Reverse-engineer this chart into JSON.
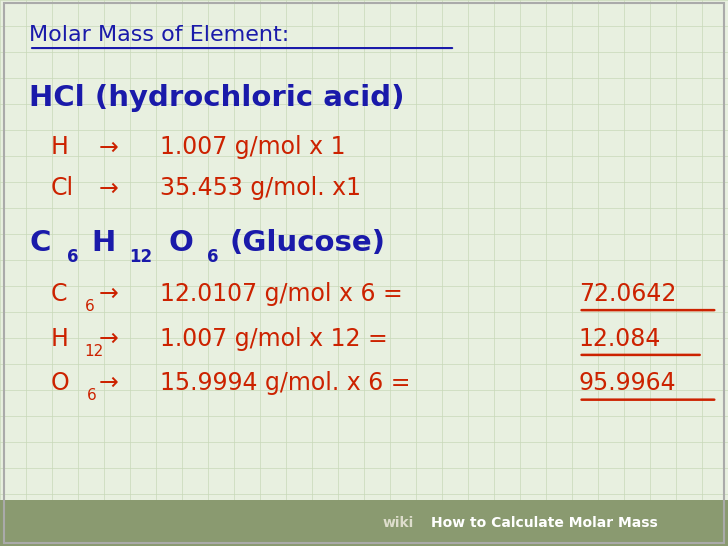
{
  "bg_color": "#e8f0e0",
  "grid_color": "#c8d8b8",
  "title": "Molar Mass of Element:",
  "title_color": "#1a1aaa",
  "blue": "#1a1aaa",
  "red": "#cc2200",
  "footer_bg": "#8a9a70",
  "footer_text_wiki": "wiki",
  "footer_text_main": "How to Calculate Molar Mass",
  "footer_wiki_color": "#ddddcc",
  "footer_main_color": "#ffffff"
}
